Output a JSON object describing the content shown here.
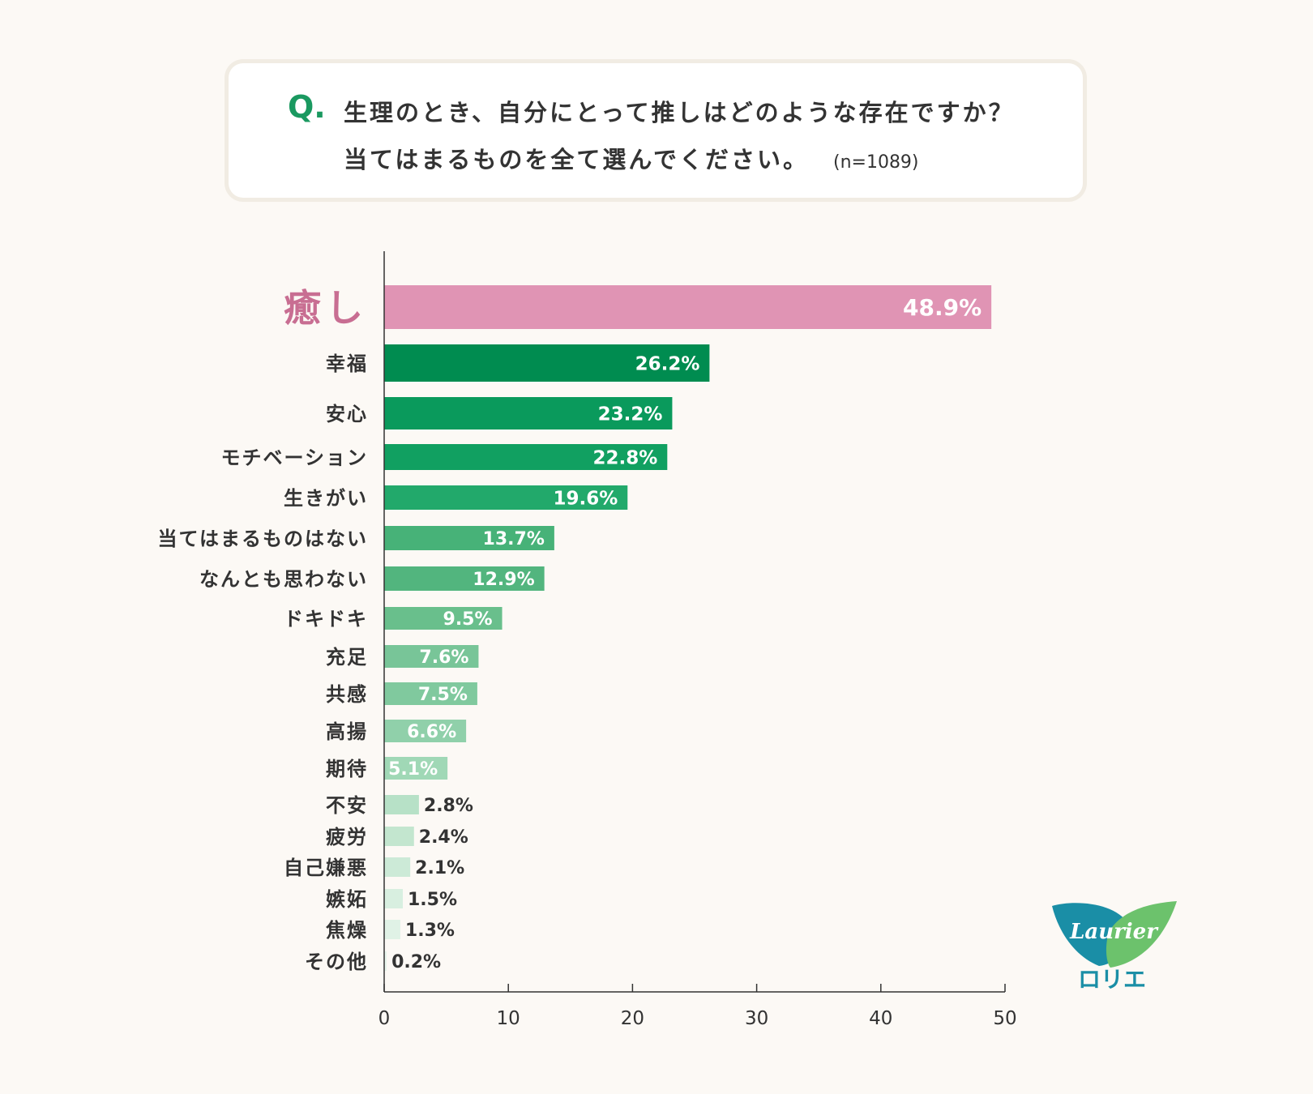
{
  "question": {
    "mark": "Q.",
    "line1": "生理のとき、自分にとって推しはどのような存在ですか？",
    "line2": "当てはまるものを全て選んでください。",
    "n": "(n=1089)"
  },
  "chart_data": {
    "type": "bar",
    "orientation": "horizontal",
    "title": "",
    "xlabel": "",
    "ylabel": "",
    "xlim": [
      0,
      50
    ],
    "xticks": [
      0,
      10,
      20,
      30,
      40,
      50
    ],
    "grid": false,
    "categories": [
      "癒し",
      "幸福",
      "安心",
      "モチベーション",
      "生きがい",
      "当てはまるものはない",
      "なんとも思わない",
      "ドキドキ",
      "充足",
      "共感",
      "高揚",
      "期待",
      "不安",
      "疲労",
      "自己嫌悪",
      "嫉妬",
      "焦燥",
      "その他"
    ],
    "values": [
      48.9,
      26.2,
      23.2,
      22.8,
      19.6,
      13.7,
      12.9,
      9.5,
      7.6,
      7.5,
      6.6,
      5.1,
      2.8,
      2.4,
      2.1,
      1.5,
      1.3,
      0.2
    ],
    "value_labels": [
      "48.9%",
      "26.2%",
      "23.2%",
      "22.8%",
      "19.6%",
      "13.7%",
      "12.9%",
      "9.5%",
      "7.6%",
      "7.5%",
      "6.6%",
      "5.1%",
      "2.8%",
      "2.4%",
      "2.1%",
      "1.5%",
      "1.3%",
      "0.2%"
    ],
    "colors": [
      "#e094b4",
      "#008c50",
      "#0a9a5c",
      "#11a061",
      "#22a96b",
      "#47b278",
      "#52b57e",
      "#69bf8c",
      "#78c598",
      "#80c99e",
      "#90d0aa",
      "#a0d8b6",
      "#b7e1c7",
      "#c3e6cf",
      "#ccead7",
      "#d8efe0",
      "#e0f2e6",
      "#e8f5ec"
    ],
    "highlight_color": "#c86e92"
  },
  "logo": {
    "brand": "Laurier",
    "katakana": "ロリエ",
    "teal": "#1a8ea6",
    "green": "#6cc26c"
  }
}
